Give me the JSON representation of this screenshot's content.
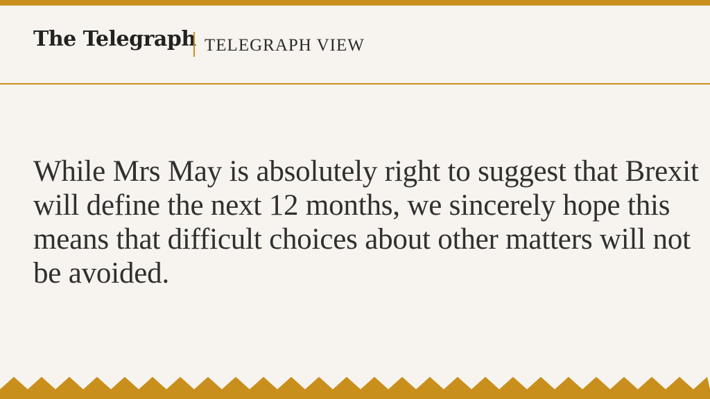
{
  "header": {
    "masthead": "The Telegraph",
    "section": "TELEGRAPH VIEW"
  },
  "quote": {
    "text": "While Mrs May is absolutely right to suggest that Brexit will define the next 12 months, we sincerely hope this means that difficult choices about other matters will not be avoided."
  },
  "colors": {
    "accent": "#c98f1d",
    "background": "#f7f4ef",
    "text": "#303030"
  }
}
